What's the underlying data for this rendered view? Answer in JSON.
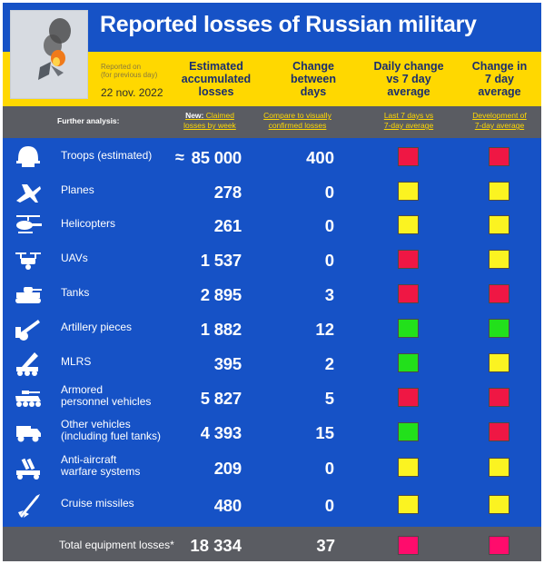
{
  "header": {
    "title": "Reported losses of Russian military",
    "reported_on": "Reported on",
    "reported_note": "(for previous day)",
    "date": "22 nov. 2022",
    "col_accumulated": [
      "Estimated",
      "accumulated",
      "losses"
    ],
    "col_change": [
      "Change",
      "between",
      "days"
    ],
    "col_daily": [
      "Daily change",
      "vs 7 day",
      "average"
    ],
    "col_7day": [
      "Change in",
      "7 day",
      "average"
    ]
  },
  "analysis": {
    "label": "Further analysis:",
    "new_prefix": "New:",
    "claimed_by_week": [
      "Claimed",
      "losses by week"
    ],
    "compare_visual": [
      "Compare to visually",
      "confirmed losses"
    ],
    "last7": [
      "Last 7 days vs",
      "7-day average"
    ],
    "development": [
      "Development of",
      "7-day average"
    ]
  },
  "colors": {
    "red": "#ef1744",
    "yellow": "#fbf321",
    "green": "#22e01b",
    "pink": "#ff0c6c",
    "blue": "#1652c6",
    "gold": "#ffd800"
  },
  "rows": [
    {
      "icon": "helmet-icon",
      "label": [
        "Troops (estimated)"
      ],
      "approx": "≈",
      "value": "85 000",
      "change": "400",
      "daily": "red",
      "trend": "red"
    },
    {
      "icon": "fighter-jet-icon",
      "label": [
        "Planes"
      ],
      "value": "278",
      "change": "0",
      "daily": "yellow",
      "trend": "yellow"
    },
    {
      "icon": "helicopter-icon",
      "label": [
        "Helicopters"
      ],
      "value": "261",
      "change": "0",
      "daily": "yellow",
      "trend": "yellow"
    },
    {
      "icon": "drone-icon",
      "label": [
        "UAVs"
      ],
      "value": "1 537",
      "change": "0",
      "daily": "red",
      "trend": "yellow"
    },
    {
      "icon": "tank-icon",
      "label": [
        "Tanks"
      ],
      "value": "2 895",
      "change": "3",
      "daily": "red",
      "trend": "red"
    },
    {
      "icon": "artillery-icon",
      "label": [
        "Artillery pieces"
      ],
      "value": "1 882",
      "change": "12",
      "daily": "green",
      "trend": "green"
    },
    {
      "icon": "rocket-launcher-icon",
      "label": [
        "MLRS"
      ],
      "value": "395",
      "change": "2",
      "daily": "green",
      "trend": "yellow"
    },
    {
      "icon": "apc-icon",
      "label": [
        "Armored",
        "personnel vehicles"
      ],
      "value": "5 827",
      "change": "5",
      "daily": "red",
      "trend": "red"
    },
    {
      "icon": "truck-icon",
      "label": [
        "Other vehicles",
        "(including fuel tanks)"
      ],
      "value": "4 393",
      "change": "15",
      "daily": "green",
      "trend": "red"
    },
    {
      "icon": "anti-aircraft-icon",
      "label": [
        "Anti-aircraft",
        "warfare systems"
      ],
      "value": "209",
      "change": "0",
      "daily": "yellow",
      "trend": "yellow"
    },
    {
      "icon": "missile-icon",
      "label": [
        "Cruise missiles"
      ],
      "value": "480",
      "change": "0",
      "daily": "yellow",
      "trend": "yellow"
    }
  ],
  "total": {
    "label": "Total equipment losses*",
    "value": "18 334",
    "change": "37",
    "daily": "pink",
    "trend": "pink"
  }
}
